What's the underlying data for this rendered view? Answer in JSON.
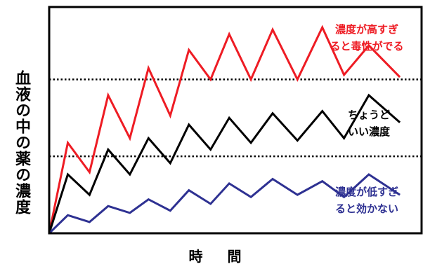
{
  "chart_data": {
    "type": "line",
    "ylabel": "血液の中の薬の濃度",
    "xlabel": "時 間",
    "xlim": [
      0,
      12
    ],
    "ylim": [
      0,
      10
    ],
    "grid": false,
    "reference_lines": [
      {
        "y": 6.8,
        "style": "dotted"
      },
      {
        "y": 3.4,
        "style": "dotted"
      }
    ],
    "series": [
      {
        "color": "#ee1c24",
        "label": [
          "濃度が高すぎ",
          "ると毒性がでる"
        ],
        "x": [
          0,
          0.6,
          1.3,
          1.9,
          2.6,
          3.2,
          3.9,
          4.5,
          5.2,
          5.8,
          6.5,
          7.2,
          8.0,
          8.8,
          9.5,
          10.3,
          11.3
        ],
        "y": [
          0,
          4.0,
          2.7,
          6.1,
          4.2,
          7.3,
          5.2,
          8.1,
          6.8,
          8.8,
          6.8,
          9.0,
          6.8,
          9.1,
          7.0,
          8.3,
          6.9
        ]
      },
      {
        "color": "#000000",
        "label": [
          "ちょうど",
          "いい濃度"
        ],
        "x": [
          0,
          0.6,
          1.3,
          1.9,
          2.6,
          3.2,
          3.9,
          4.5,
          5.2,
          5.8,
          6.5,
          7.2,
          8.0,
          8.8,
          9.5,
          10.3,
          11.3
        ],
        "y": [
          0,
          2.6,
          1.7,
          3.7,
          2.6,
          4.2,
          3.1,
          4.8,
          3.7,
          5.1,
          4.0,
          5.3,
          4.1,
          5.4,
          4.2,
          6.1,
          4.9
        ]
      },
      {
        "color": "#2e3192",
        "label": [
          "濃度が低すぎ",
          "ると効かない"
        ],
        "x": [
          0,
          0.6,
          1.3,
          1.9,
          2.6,
          3.2,
          3.9,
          4.5,
          5.2,
          5.8,
          6.5,
          7.2,
          8.0,
          8.8,
          9.5,
          10.3,
          11.3
        ],
        "y": [
          0,
          0.8,
          0.5,
          1.2,
          0.9,
          1.5,
          1.0,
          1.9,
          1.3,
          2.2,
          1.6,
          2.4,
          1.7,
          2.3,
          1.6,
          2.6,
          1.7
        ]
      }
    ]
  }
}
